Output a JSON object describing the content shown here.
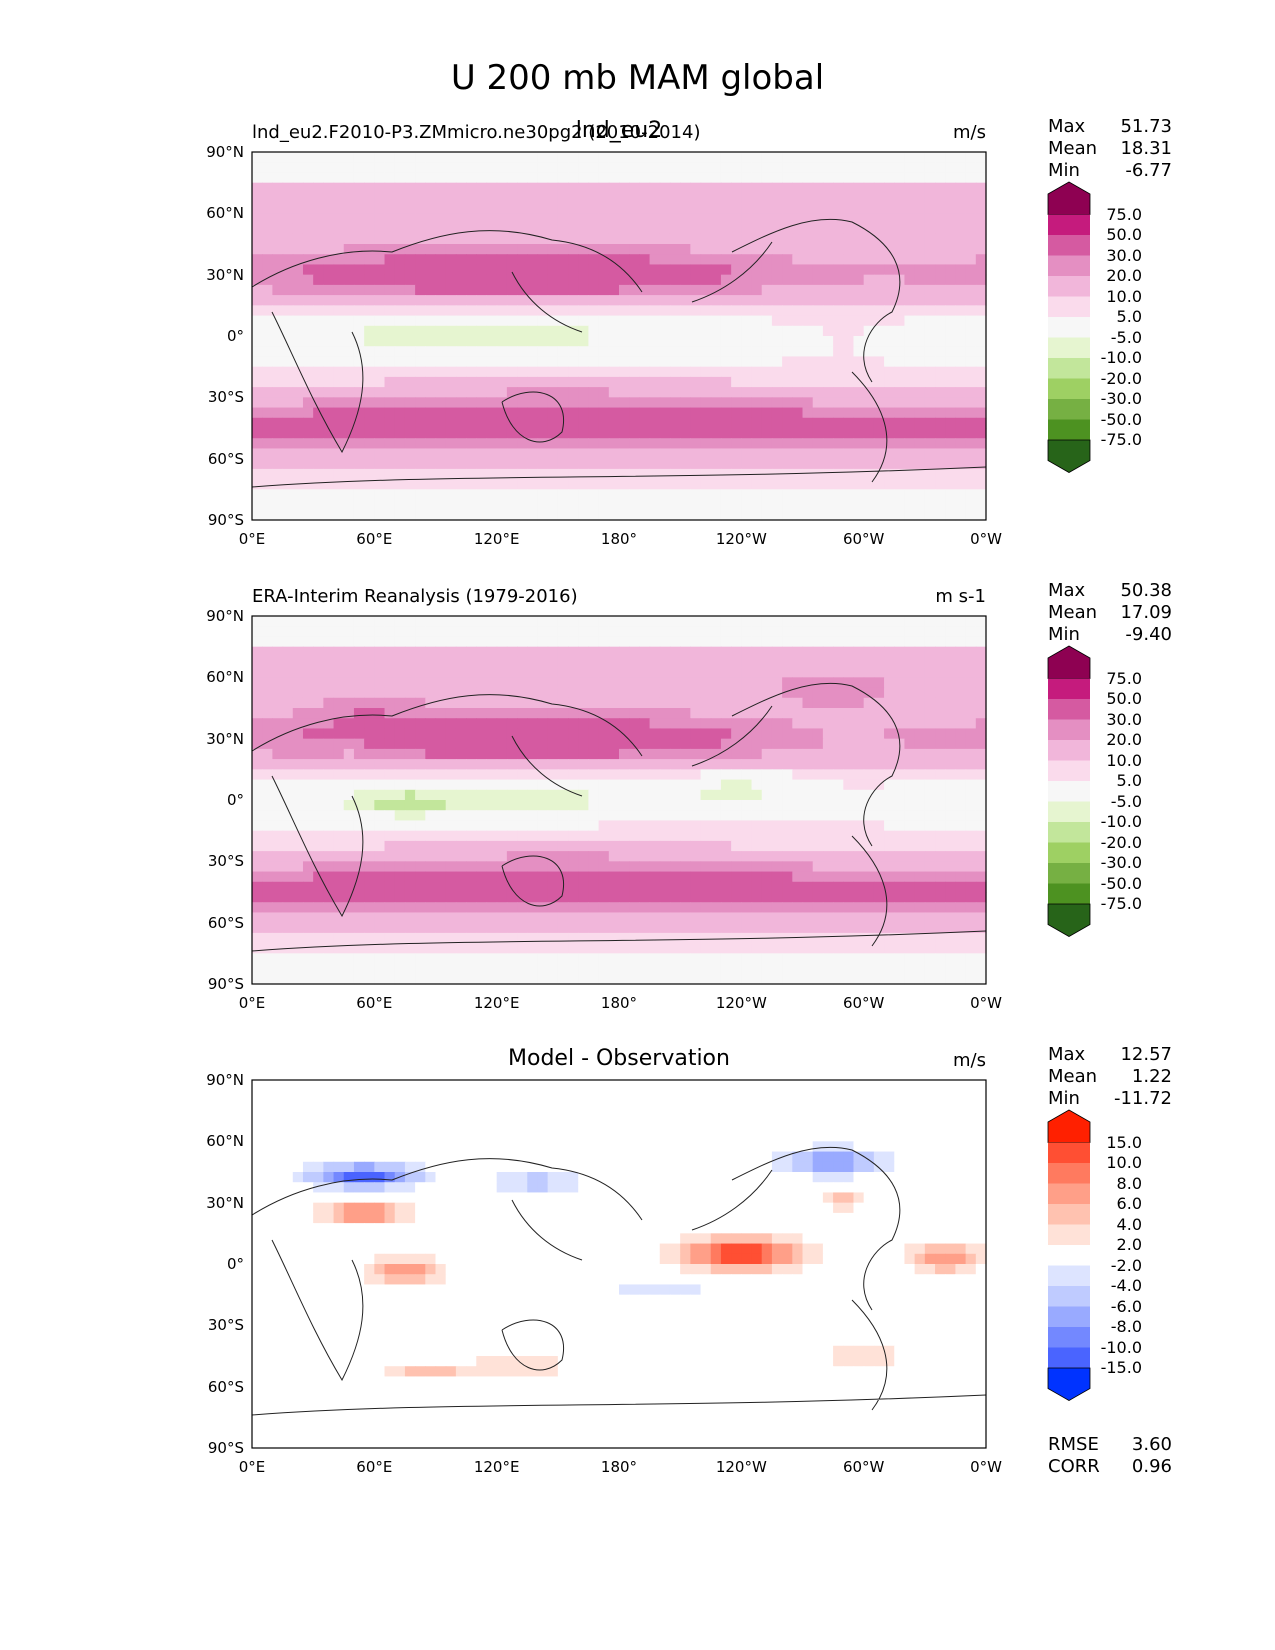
{
  "main_title": "U 200 mb MAM global",
  "chart_data": [
    {
      "type": "heatmap",
      "title_left": "lnd_eu2.F2010-P3.ZMmicro.ne30pg2 (2010-2014)",
      "title_center": "lnd_eu2",
      "units": "m/s",
      "stats": {
        "max_label": "Max",
        "max": "51.73",
        "mean_label": "Mean",
        "mean": "18.31",
        "min_label": "Min",
        "min": "-6.77"
      },
      "colorbar": {
        "levels": [
          "75.0",
          "50.0",
          "30.0",
          "20.0",
          "10.0",
          "5.0",
          "-5.0",
          "-10.0",
          "-20.0",
          "-30.0",
          "-50.0",
          "-75.0"
        ],
        "colors": [
          "#8e0152",
          "#c51b7d",
          "#d55aa1",
          "#e48fc2",
          "#f1b6da",
          "#fadbec",
          "#f7f7f7",
          "#e6f5d0",
          "#c2e69b",
          "#9ed063",
          "#76b043",
          "#4d9221",
          "#276419"
        ]
      },
      "field": "model",
      "xlabels": [
        "0°E",
        "60°E",
        "120°E",
        "180°",
        "120°W",
        "60°W",
        "0°W"
      ],
      "ylabels": [
        "90°N",
        "60°N",
        "30°N",
        "0°",
        "30°S",
        "60°S",
        "90°S"
      ]
    },
    {
      "type": "heatmap",
      "title_left": "ERA-Interim Reanalysis (1979-2016)",
      "title_center": "",
      "units": "m s-1",
      "stats": {
        "max_label": "Max",
        "max": "50.38",
        "mean_label": "Mean",
        "mean": "17.09",
        "min_label": "Min",
        "min": "-9.40"
      },
      "colorbar": {
        "levels": [
          "75.0",
          "50.0",
          "30.0",
          "20.0",
          "10.0",
          "5.0",
          "-5.0",
          "-10.0",
          "-20.0",
          "-30.0",
          "-50.0",
          "-75.0"
        ],
        "colors": [
          "#8e0152",
          "#c51b7d",
          "#d55aa1",
          "#e48fc2",
          "#f1b6da",
          "#fadbec",
          "#f7f7f7",
          "#e6f5d0",
          "#c2e69b",
          "#9ed063",
          "#76b043",
          "#4d9221",
          "#276419"
        ]
      },
      "field": "obs",
      "xlabels": [
        "0°E",
        "60°E",
        "120°E",
        "180°",
        "120°W",
        "60°W",
        "0°W"
      ],
      "ylabels": [
        "90°N",
        "60°N",
        "30°N",
        "0°",
        "30°S",
        "60°S",
        "90°S"
      ]
    },
    {
      "type": "heatmap",
      "title_left": "",
      "title_center": "Model - Observation",
      "units": "m/s",
      "stats": {
        "max_label": "Max",
        "max": "12.57",
        "mean_label": "Mean",
        "mean": "1.22",
        "min_label": "Min",
        "min": "-11.72"
      },
      "extra_stats": {
        "rmse_label": "RMSE",
        "rmse": "3.60",
        "corr_label": "CORR",
        "corr": "0.96"
      },
      "colorbar": {
        "levels": [
          "15.0",
          "10.0",
          "8.0",
          "6.0",
          "4.0",
          "2.0",
          "-2.0",
          "-4.0",
          "-6.0",
          "-8.0",
          "-10.0",
          "-15.0"
        ],
        "colors": [
          "#ff2000",
          "#ff4f33",
          "#ff7a5f",
          "#ff9f88",
          "#ffc2b0",
          "#ffe2d8",
          "#ffffff",
          "#dde4ff",
          "#bfcbff",
          "#99aaff",
          "#7388ff",
          "#4a64ff",
          "#0033ff"
        ]
      },
      "field": "diff",
      "xlabels": [
        "0°E",
        "60°E",
        "120°E",
        "180°",
        "120°W",
        "60°W",
        "0°W"
      ],
      "ylabels": [
        "90°N",
        "60°N",
        "30°N",
        "0°",
        "30°S",
        "60°S",
        "90°S"
      ]
    }
  ]
}
